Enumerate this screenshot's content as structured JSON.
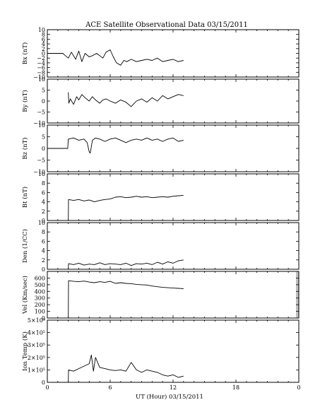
{
  "title": "ACE Satellite Observational Data   03/15/2011",
  "xlabel": "UT (Hour)  03/15/2011",
  "x_ticks": [
    "0",
    "6",
    "12",
    "18",
    "0"
  ],
  "colors": {
    "line": "#000000",
    "axis": "#000000",
    "background": "#ffffff",
    "highlight": "#bfbfbf"
  },
  "chart_data": [
    {
      "type": "line",
      "ylabel": "Bx (nT)",
      "xlim": [
        0,
        24
      ],
      "ylim": [
        -10,
        10
      ],
      "yticks": [
        -10,
        -8,
        -6,
        -4,
        -2,
        0,
        2,
        4,
        6,
        8,
        10
      ],
      "ytick_labels": [
        "−10",
        "−8",
        "−6",
        "−4",
        "−2",
        "0",
        "2",
        "4",
        "6",
        "8",
        "10"
      ],
      "grid": false,
      "series": [
        {
          "x": [
            0,
            1.5,
            1.6,
            2.0,
            2.3,
            2.7,
            3.0,
            3.3,
            3.6,
            4.0,
            4.3,
            4.7,
            5.0,
            5.3,
            5.6,
            6.0,
            6.3,
            6.6,
            7.0,
            7.3,
            7.6,
            8.0,
            8.5,
            9.0,
            9.5,
            10.0,
            10.5,
            11.0,
            11.5,
            12.0,
            12.5,
            13.0
          ],
          "y": [
            0,
            0,
            -0.5,
            -2.0,
            0.5,
            -2.5,
            1.0,
            -3.5,
            0.0,
            -1.5,
            -1.0,
            0.0,
            -1.0,
            -2.0,
            0.5,
            1.5,
            -1.5,
            -4.0,
            -5.0,
            -3.0,
            -3.5,
            -2.5,
            -3.5,
            -3.0,
            -2.5,
            -3.0,
            -2.0,
            -3.5,
            -3.0,
            -2.5,
            -3.5,
            -3.0
          ]
        }
      ]
    },
    {
      "type": "line",
      "ylabel": "By (nT)",
      "xlim": [
        0,
        24
      ],
      "ylim": [
        -10,
        10
      ],
      "yticks": [
        -10,
        -5,
        0,
        5,
        10
      ],
      "ytick_labels": [
        "−10",
        "−5",
        "0",
        "5",
        "10"
      ],
      "grid": false,
      "series": [
        {
          "x": [
            2.0,
            2.05,
            2.2,
            2.5,
            2.8,
            3.0,
            3.3,
            3.6,
            4.0,
            4.3,
            4.6,
            5.0,
            5.3,
            5.6,
            6.0,
            6.5,
            7.0,
            7.5,
            8.0,
            8.5,
            9.0,
            9.5,
            10.0,
            10.5,
            11.0,
            11.5,
            12.0,
            12.5,
            13.0
          ],
          "y": [
            4.0,
            -1.0,
            1.0,
            -1.5,
            2.0,
            0.5,
            3.0,
            1.5,
            0.0,
            2.0,
            0.5,
            -1.0,
            0.5,
            1.0,
            0.0,
            -1.0,
            0.5,
            -0.5,
            -2.5,
            0.0,
            1.0,
            -0.5,
            1.5,
            0.0,
            2.5,
            1.0,
            2.0,
            3.0,
            2.5
          ]
        }
      ]
    },
    {
      "type": "line",
      "ylabel": "Bz (nT)",
      "xlim": [
        0,
        24
      ],
      "ylim": [
        -10,
        10
      ],
      "yticks": [
        -10,
        -5,
        0,
        5,
        10
      ],
      "ytick_labels": [
        "−10",
        "−5",
        "0",
        "5",
        "10"
      ],
      "grid": false,
      "series": [
        {
          "x": [
            0,
            1.95,
            2.0,
            2.5,
            3.0,
            3.5,
            3.8,
            4.0,
            4.1,
            4.3,
            4.6,
            5.0,
            5.5,
            6.0,
            6.5,
            7.0,
            7.5,
            8.0,
            8.5,
            9.0,
            9.5,
            10.0,
            10.5,
            11.0,
            11.5,
            12.0,
            12.5,
            13.0
          ],
          "y": [
            0,
            0,
            4.0,
            4.5,
            3.5,
            4.0,
            2.5,
            -1.5,
            -2.0,
            3.5,
            4.5,
            4.0,
            3.0,
            4.0,
            4.5,
            3.5,
            2.5,
            3.5,
            4.0,
            3.5,
            4.5,
            3.5,
            4.0,
            3.0,
            4.0,
            4.5,
            3.0,
            3.5
          ]
        }
      ]
    },
    {
      "type": "line",
      "ylabel": "Bt (nT)",
      "xlim": [
        0,
        24
      ],
      "ylim": [
        0,
        10
      ],
      "yticks": [
        0,
        2,
        4,
        6,
        8,
        10
      ],
      "ytick_labels": [
        "0",
        "2",
        "4",
        "6",
        "8",
        "10"
      ],
      "grid": false,
      "series": [
        {
          "x": [
            2.0,
            2.02,
            2.5,
            3.0,
            3.5,
            4.0,
            4.5,
            5.0,
            5.5,
            6.0,
            6.5,
            7.0,
            7.5,
            8.0,
            8.5,
            9.0,
            9.5,
            10.0,
            10.5,
            11.0,
            11.5,
            12.0,
            12.5,
            13.0
          ],
          "y": [
            0,
            4.5,
            4.3,
            4.5,
            4.2,
            4.4,
            4.0,
            4.3,
            4.5,
            4.6,
            5.0,
            5.1,
            4.9,
            5.0,
            5.2,
            5.0,
            5.1,
            4.9,
            5.0,
            5.1,
            5.0,
            5.2,
            5.3,
            5.4
          ]
        }
      ]
    },
    {
      "type": "line",
      "ylabel": "Den (1/CC)",
      "xlim": [
        0,
        24
      ],
      "ylim": [
        0,
        10
      ],
      "yticks": [
        0,
        2,
        4,
        6,
        8,
        10
      ],
      "ytick_labels": [
        "0",
        "2",
        "4",
        "6",
        "8",
        "10"
      ],
      "grid": false,
      "series": [
        {
          "x": [
            2.0,
            2.02,
            2.5,
            3.0,
            3.5,
            4.0,
            4.5,
            5.0,
            5.5,
            6.0,
            6.5,
            7.0,
            7.5,
            8.0,
            8.5,
            9.0,
            9.5,
            10.0,
            10.5,
            11.0,
            11.5,
            12.0,
            12.5,
            13.0
          ],
          "y": [
            0,
            1.2,
            1.0,
            1.3,
            0.9,
            1.1,
            1.0,
            1.4,
            1.0,
            1.2,
            1.1,
            1.0,
            1.3,
            0.8,
            1.2,
            1.1,
            1.3,
            1.0,
            1.5,
            1.1,
            1.6,
            1.3,
            1.8,
            2.0
          ]
        }
      ]
    },
    {
      "type": "line",
      "ylabel": "Vel (Km/sec)",
      "xlim": [
        0,
        24
      ],
      "ylim": [
        0,
        700
      ],
      "yticks": [
        0,
        100,
        200,
        300,
        400,
        500,
        600
      ],
      "ytick_labels": [
        "0",
        "100",
        "200",
        "300",
        "400",
        "500",
        "600"
      ],
      "grid": false,
      "series": [
        {
          "x": [
            2.0,
            2.02,
            2.5,
            3.0,
            3.5,
            4.0,
            4.5,
            5.0,
            5.5,
            6.0,
            6.5,
            7.0,
            7.5,
            8.0,
            8.5,
            9.0,
            9.5,
            10.0,
            10.5,
            11.0,
            11.5,
            12.0,
            12.5,
            13.0
          ],
          "y": [
            0,
            560,
            550,
            545,
            555,
            540,
            530,
            545,
            535,
            550,
            520,
            530,
            520,
            515,
            505,
            500,
            495,
            480,
            470,
            460,
            455,
            450,
            445,
            440
          ]
        }
      ]
    },
    {
      "type": "line",
      "ylabel": "Ion Temp (K)",
      "xlim": [
        0,
        24
      ],
      "ylim": [
        0,
        500000
      ],
      "yticks": [
        0,
        100000,
        200000,
        300000,
        400000,
        500000
      ],
      "ytick_labels": [
        "0",
        "1×10⁵",
        "2×10⁵",
        "3×10⁵",
        "4×10⁵",
        "5×10⁵"
      ],
      "grid": false,
      "series": [
        {
          "x": [
            2.0,
            2.02,
            2.5,
            3.0,
            3.5,
            4.0,
            4.2,
            4.4,
            4.6,
            5.0,
            5.5,
            6.0,
            6.5,
            7.0,
            7.5,
            8.0,
            8.5,
            9.0,
            9.5,
            10.0,
            10.5,
            11.0,
            11.5,
            12.0,
            12.5,
            13.0
          ],
          "y": [
            0,
            100000,
            90000,
            110000,
            130000,
            150000,
            220000,
            90000,
            200000,
            120000,
            110000,
            100000,
            95000,
            100000,
            90000,
            160000,
            100000,
            80000,
            100000,
            90000,
            80000,
            60000,
            50000,
            60000,
            40000,
            50000
          ]
        }
      ]
    }
  ]
}
